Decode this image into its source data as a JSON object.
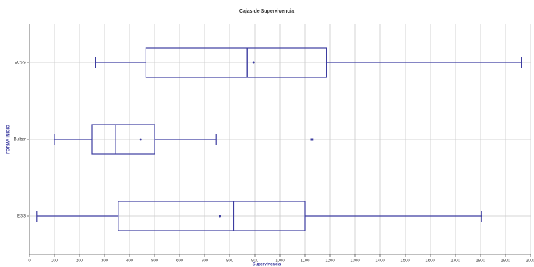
{
  "chart_data": {
    "type": "box",
    "title": "Cajas de Supervivencia",
    "x_label": "Supervivencia",
    "y_label": "FORMA INICIO",
    "categories": [
      "ECSS",
      "Bulbar",
      "ESS"
    ],
    "color": "#3c3ca0",
    "boxes": [
      {
        "whislo": 265,
        "q1": 465,
        "med": 870,
        "mean": 895,
        "q3": 1185,
        "whishi": 1965,
        "outliers": []
      },
      {
        "whislo": 100,
        "q1": 250,
        "med": 345,
        "mean": 445,
        "q3": 500,
        "whishi": 745,
        "outliers": [
          1125,
          1130
        ]
      },
      {
        "whislo": 30,
        "q1": 355,
        "med": 815,
        "mean": 760,
        "q3": 1100,
        "whishi": 1805,
        "outliers": []
      }
    ],
    "xlim": [
      0,
      2000
    ],
    "xticks": [
      0,
      100,
      200,
      300,
      400,
      500,
      600,
      700,
      800,
      900,
      1000,
      1100,
      1200,
      1300,
      1400,
      1500,
      1600,
      1700,
      1800,
      1900,
      2000
    ],
    "grid": true
  }
}
